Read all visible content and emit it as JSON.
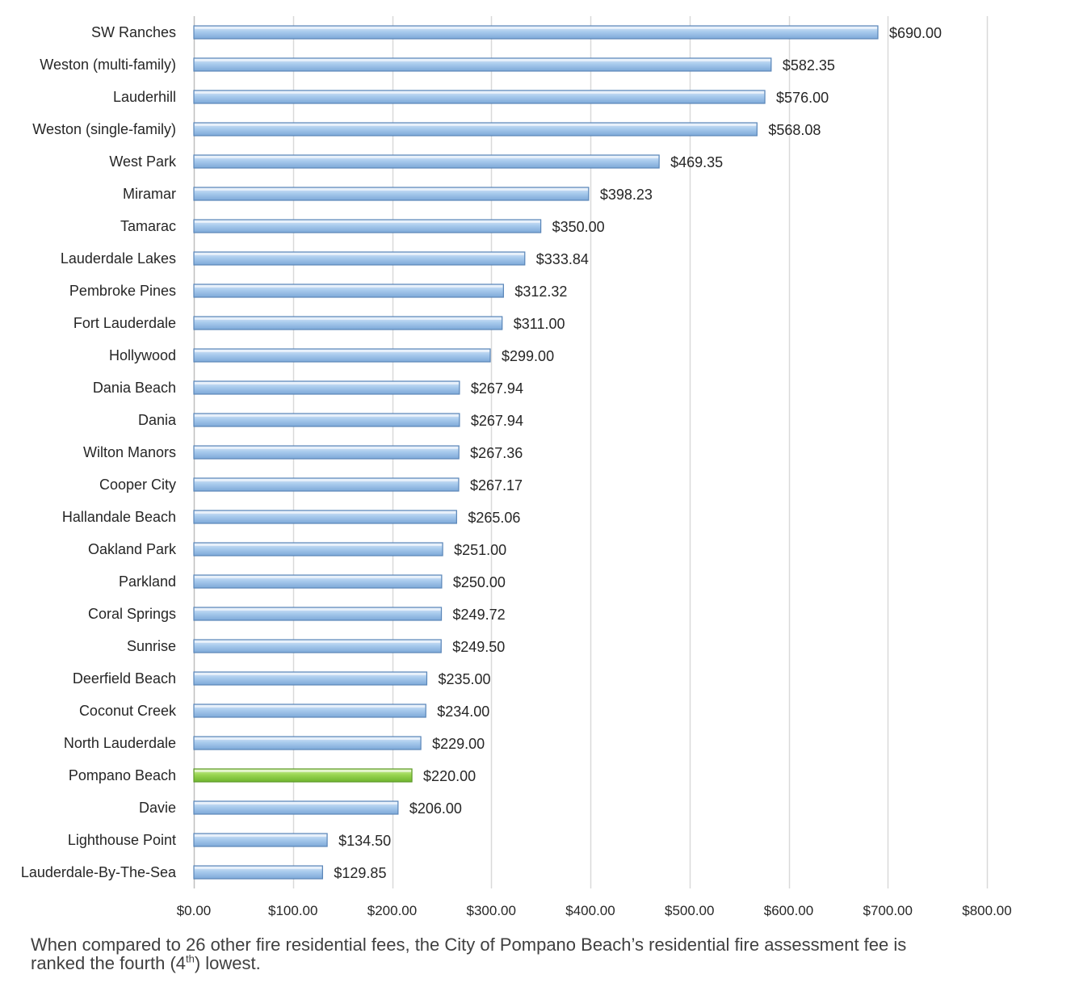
{
  "chart_data": {
    "type": "bar",
    "orientation": "horizontal",
    "categories": [
      "SW Ranches",
      "Weston (multi-family)",
      "Lauderhill",
      "Weston (single-family)",
      "West Park",
      "Miramar",
      "Tamarac",
      "Lauderdale Lakes",
      "Pembroke Pines",
      "Fort Lauderdale",
      "Hollywood",
      "Dania Beach",
      "Dania",
      "Wilton Manors",
      "Cooper City",
      "Hallandale Beach",
      "Oakland Park",
      "Parkland",
      "Coral Springs",
      "Sunrise",
      "Deerfield Beach",
      "Coconut Creek",
      "North Lauderdale",
      "Pompano Beach",
      "Davie",
      "Lighthouse Point",
      "Lauderdale-By-The-Sea"
    ],
    "values": [
      690.0,
      582.35,
      576.0,
      568.08,
      469.35,
      398.23,
      350.0,
      333.84,
      312.32,
      311.0,
      299.0,
      267.94,
      267.94,
      267.36,
      267.17,
      265.06,
      251.0,
      250.0,
      249.72,
      249.5,
      235.0,
      234.0,
      229.0,
      220.0,
      206.0,
      134.5,
      129.85
    ],
    "value_labels": [
      "$690.00",
      "$582.35",
      "$576.00",
      "$568.08",
      "$469.35",
      "$398.23",
      "$350.00",
      "$333.84",
      "$312.32",
      "$311.00",
      "$299.00",
      "$267.94",
      "$267.94",
      "$267.36",
      "$267.17",
      "$265.06",
      "$251.00",
      "$250.00",
      "$249.72",
      "$249.50",
      "$235.00",
      "$234.00",
      "$229.00",
      "$220.00",
      "$206.00",
      "$134.50",
      "$129.85"
    ],
    "highlight_category": "Pompano Beach",
    "xlim": [
      0,
      800
    ],
    "xticks": [
      0,
      100,
      200,
      300,
      400,
      500,
      600,
      700,
      800
    ],
    "xtick_labels": [
      "$0.00",
      "$100.00",
      "$200.00",
      "$300.00",
      "$400.00",
      "$500.00",
      "$600.00",
      "$700.00",
      "$800.00"
    ],
    "grid": true,
    "legend": "none",
    "colors": {
      "bar": "#9dc3e6",
      "bar_edge": "#5a86b8",
      "highlight_bar": "#92d050",
      "highlight_edge": "#5e9a2a",
      "grid": "#d9d9d9"
    }
  },
  "caption": {
    "line1": "When compared to 26 other fire residential fees, the City of Pompano Beach’s residential fire assessment fee is",
    "line2_before": "ranked the fourth (4",
    "line2_sup": "th",
    "line2_after": ") lowest."
  }
}
